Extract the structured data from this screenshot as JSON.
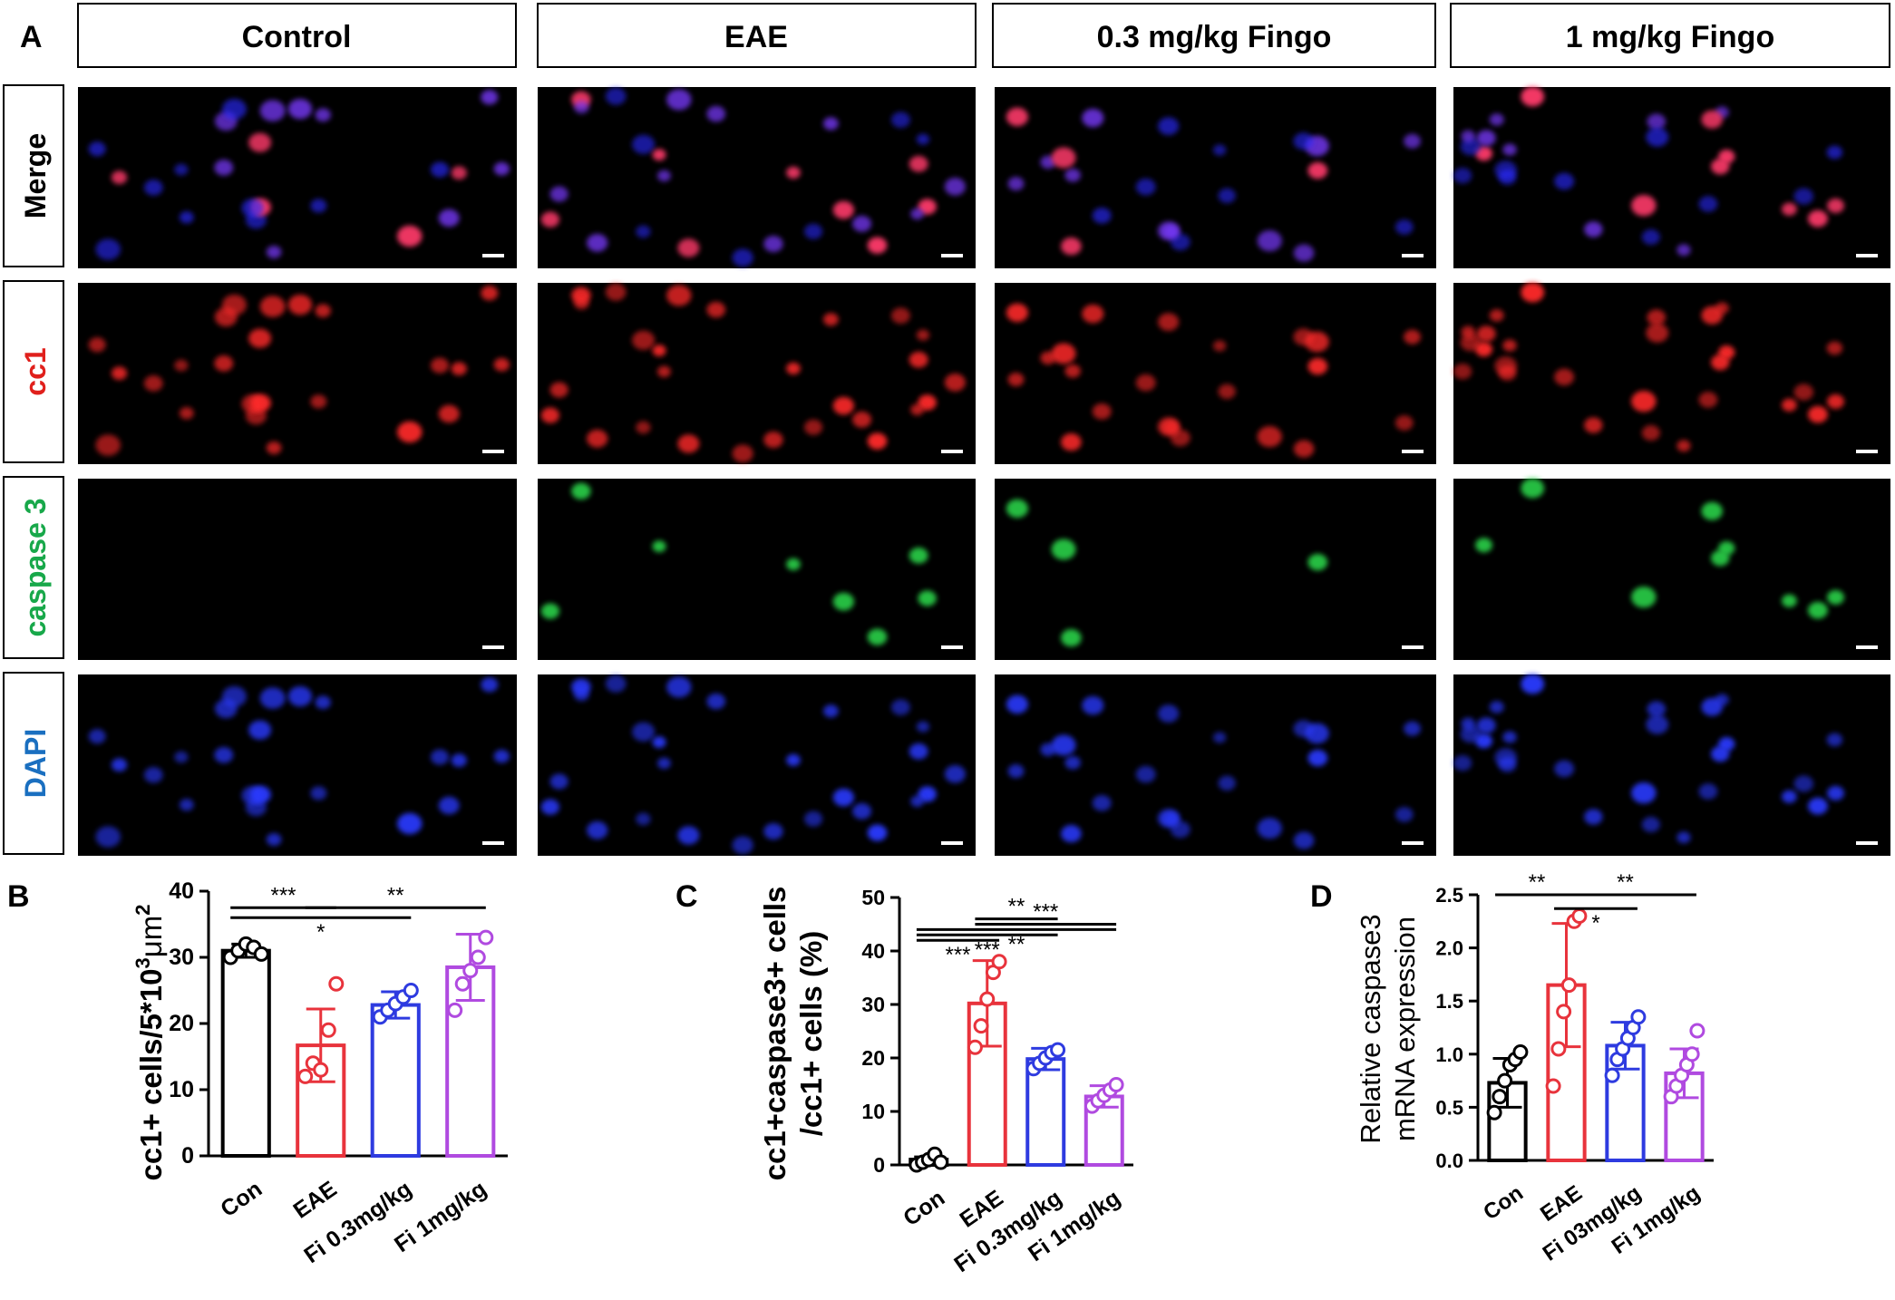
{
  "panel_letters": {
    "a": "A",
    "b": "B",
    "c": "C",
    "d": "D"
  },
  "columns": [
    "Control",
    "EAE",
    "0.3 mg/kg Fingo",
    "1 mg/kg Fingo"
  ],
  "rows": [
    {
      "label": "Merge",
      "color": "#000000"
    },
    {
      "label": "cc1",
      "color": "#e0201c"
    },
    {
      "label": "caspase 3",
      "color": "#18a84a"
    },
    {
      "label": "DAPI",
      "color": "#1a6fc0"
    }
  ],
  "group_colors": [
    "#000000",
    "#e8333c",
    "#2e3be0",
    "#b04ae0"
  ],
  "chart_data": [
    {
      "id": "B",
      "type": "bar",
      "ylabel_main": "cc1+ cells/5*10",
      "ylabel_sup1": "3",
      "ylabel_mid": "μm",
      "ylabel_sup2": "2",
      "categories": [
        "Con",
        "EAE",
        "Fi 0.3mg/kg",
        "Fi 1mg/kg"
      ],
      "values": [
        31,
        16.7,
        22.8,
        28.5
      ],
      "errors": [
        1.0,
        5.5,
        2.0,
        5.0
      ],
      "points": [
        [
          30,
          31,
          32,
          31.5,
          30.5
        ],
        [
          12,
          14,
          13,
          19,
          26
        ],
        [
          21,
          22,
          23,
          24,
          25
        ],
        [
          22,
          26,
          28,
          30,
          33
        ]
      ],
      "ylim": [
        0,
        40
      ],
      "yticks": [
        0,
        10,
        20,
        30,
        40
      ],
      "significance": [
        {
          "from": 0,
          "to": 1,
          "label": "***",
          "y": 37.5
        },
        {
          "from": 1,
          "to": 3,
          "label": "**",
          "y": 37.5
        },
        {
          "from": 0,
          "to": 2,
          "label": "*",
          "y": 36.0,
          "label_below": true
        }
      ]
    },
    {
      "id": "C",
      "type": "bar",
      "ylabel_line1": "cc1+caspase3+ cells",
      "ylabel_line2": "/cc1+ cells (%)",
      "categories": [
        "Con",
        "EAE",
        "Fi 0.3mg/kg",
        "Fi 1mg/kg"
      ],
      "values": [
        1.0,
        30.2,
        19.8,
        12.8
      ],
      "errors": [
        0.5,
        8.0,
        2.0,
        2.0
      ],
      "points": [
        [
          0,
          0.5,
          1,
          2,
          0.5
        ],
        [
          22,
          26,
          31,
          36,
          38
        ],
        [
          18,
          19,
          20,
          21,
          21.5
        ],
        [
          11,
          12,
          13,
          14,
          15
        ]
      ],
      "ylim": [
        0,
        50
      ],
      "yticks": [
        0,
        10,
        20,
        30,
        40,
        50
      ],
      "significance": [
        {
          "from": 1,
          "to": 2,
          "label": "**",
          "y": 46.0
        },
        {
          "from": 1,
          "to": 3,
          "label": "***",
          "y": 45.0
        },
        {
          "from": 0,
          "to": 3,
          "label": "**",
          "y": 44.0,
          "label_below": true
        },
        {
          "from": 0,
          "to": 2,
          "label": "***",
          "y": 43.0,
          "label_below": true
        },
        {
          "from": 0,
          "to": 1,
          "label": "***",
          "y": 42.0,
          "label_below": true
        }
      ]
    },
    {
      "id": "D",
      "type": "bar",
      "ylabel_line1": "Relative caspase3",
      "ylabel_line2": "mRNA expression",
      "categories": [
        "Con",
        "EAE",
        "Fi 03mg/kg",
        "Fi 1mg/kg"
      ],
      "values": [
        0.73,
        1.65,
        1.08,
        0.82
      ],
      "errors": [
        0.23,
        0.58,
        0.22,
        0.23
      ],
      "points": [
        [
          0.45,
          0.6,
          0.75,
          0.9,
          0.95,
          1.02
        ],
        [
          0.7,
          1.05,
          1.4,
          1.65,
          2.25,
          2.3
        ],
        [
          0.8,
          0.95,
          1.05,
          1.15,
          1.25,
          1.35
        ],
        [
          0.6,
          0.7,
          0.8,
          0.9,
          1.0,
          1.22
        ]
      ],
      "ylim": [
        0,
        2.5
      ],
      "yticks": [
        "0.0",
        "0.5",
        "1.0",
        "1.5",
        "2.0",
        "2.5"
      ],
      "significance": [
        {
          "from": 0,
          "to": 1,
          "label": "**",
          "y": 2.5
        },
        {
          "from": 1,
          "to": 3,
          "label": "**",
          "y": 2.5
        },
        {
          "from": 1,
          "to": 2,
          "label": "*",
          "y": 2.37,
          "label_below": true
        }
      ]
    }
  ]
}
